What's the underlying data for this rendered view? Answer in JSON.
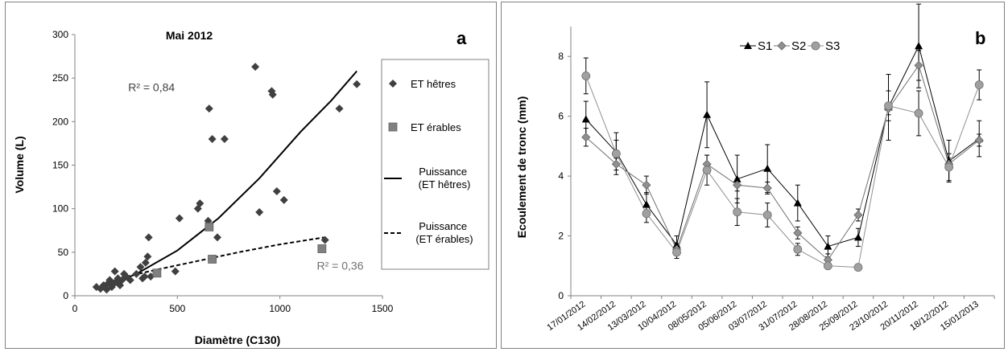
{
  "chart_data": [
    {
      "type": "scatter",
      "panel_letter": "a",
      "title": "Mai 2012",
      "xlabel": "Diamètre (C130)",
      "ylabel": "Volume (L)",
      "xlim": [
        0,
        1500
      ],
      "ylim": [
        0,
        300
      ],
      "x_ticks": [
        0,
        500,
        1000,
        1500
      ],
      "y_ticks": [
        0,
        50,
        100,
        150,
        200,
        250,
        300
      ],
      "grid": false,
      "legend_position": "right",
      "legend": [
        {
          "label": "ET hêtres"
        },
        {
          "label": "ET érables"
        },
        {
          "label": "Puissance (ET hêtres)"
        },
        {
          "label": "Puissance (ET érables)"
        }
      ],
      "annotations": [
        {
          "text": "R² = 0,84",
          "x": 260,
          "y": 235,
          "color": "#404040"
        },
        {
          "text": "R² = 0,36",
          "x": 1180,
          "y": 30,
          "color": "#707070"
        }
      ],
      "series": [
        {
          "name": "ET hêtres",
          "marker": "diamond",
          "color": "#404040",
          "points": [
            [
              105,
              10
            ],
            [
              125,
              8
            ],
            [
              140,
              12
            ],
            [
              155,
              7
            ],
            [
              165,
              15
            ],
            [
              170,
              18
            ],
            [
              180,
              10
            ],
            [
              190,
              14
            ],
            [
              195,
              28
            ],
            [
              200,
              16
            ],
            [
              210,
              20
            ],
            [
              220,
              12
            ],
            [
              230,
              18
            ],
            [
              240,
              25
            ],
            [
              250,
              22
            ],
            [
              270,
              18
            ],
            [
              300,
              25
            ],
            [
              320,
              33
            ],
            [
              330,
              20
            ],
            [
              340,
              22
            ],
            [
              345,
              38
            ],
            [
              355,
              45
            ],
            [
              360,
              67
            ],
            [
              370,
              22
            ],
            [
              490,
              28
            ],
            [
              510,
              89
            ],
            [
              600,
              100
            ],
            [
              610,
              106
            ],
            [
              650,
              86
            ],
            [
              655,
              215
            ],
            [
              670,
              180
            ],
            [
              695,
              67
            ],
            [
              730,
              180
            ],
            [
              880,
              263
            ],
            [
              900,
              96
            ],
            [
              960,
              235
            ],
            [
              965,
              231
            ],
            [
              985,
              120
            ],
            [
              1020,
              110
            ],
            [
              1220,
              64
            ],
            [
              1290,
              215
            ],
            [
              1375,
              243
            ]
          ]
        },
        {
          "name": "ET érables",
          "marker": "square",
          "color": "#808080",
          "points": [
            [
              400,
              26
            ],
            [
              655,
              79
            ],
            [
              670,
              42
            ],
            [
              1205,
              54
            ]
          ]
        },
        {
          "name": "Puissance (ET hêtres)",
          "line": "solid",
          "color": "#000000",
          "points": [
            [
              130,
              9
            ],
            [
              300,
              25
            ],
            [
              500,
              52
            ],
            [
              700,
              89
            ],
            [
              900,
              135
            ],
            [
              1100,
              188
            ],
            [
              1250,
              224
            ],
            [
              1375,
              258
            ]
          ]
        },
        {
          "name": "Puissance (ET érables)",
          "line": "dashed",
          "color": "#000000",
          "points": [
            [
              130,
              13
            ],
            [
              250,
              22
            ],
            [
              400,
              30
            ],
            [
              600,
              40
            ],
            [
              800,
              50
            ],
            [
              1000,
              59
            ],
            [
              1215,
              67
            ]
          ]
        }
      ]
    },
    {
      "type": "line",
      "panel_letter": "b",
      "xlabel": "",
      "ylabel": "Ecoulement de tronc (mm)",
      "ylim": [
        0,
        9
      ],
      "y_ticks": [
        0,
        2,
        4,
        6,
        8
      ],
      "grid": false,
      "legend_position": "top-left",
      "categories": [
        "17/01/2012",
        "14/02/2012",
        "13/03/2012",
        "10/04/2012",
        "08/05/2012",
        "05/06/2012",
        "03/07/2012",
        "31/07/2012",
        "28/08/2012",
        "25/09/2012",
        "23/10/2012",
        "20/11/2012",
        "18/12/2012",
        "15/01/2013"
      ],
      "series": [
        {
          "name": "S1",
          "marker": "triangle",
          "color": "#000000",
          "values": [
            5.9,
            4.8,
            3.05,
            1.7,
            6.05,
            3.9,
            4.25,
            3.1,
            1.65,
            1.95,
            6.3,
            8.35,
            4.5,
            5.25
          ],
          "errors": [
            0.6,
            0.4,
            0.4,
            0.3,
            1.1,
            0.8,
            0.8,
            0.6,
            0.35,
            0.3,
            1.1,
            1.4,
            0.7,
            0.6
          ]
        },
        {
          "name": "S2",
          "marker": "diamond",
          "color": "#707070",
          "values": [
            5.3,
            4.4,
            3.7,
            1.55,
            4.4,
            3.7,
            3.6,
            2.1,
            1.2,
            2.7,
            6.25,
            7.7,
            4.4,
            5.2
          ],
          "errors": [
            0.3,
            0.2,
            0.3,
            0.2,
            0.3,
            0.2,
            0.2,
            0.2,
            0.2,
            0.2,
            0.2,
            0.5,
            0.2,
            0.2
          ]
        },
        {
          "name": "S3",
          "marker": "circle",
          "color": "#909090",
          "values": [
            7.35,
            4.75,
            2.75,
            1.45,
            4.2,
            2.8,
            2.7,
            1.55,
            1.0,
            0.95,
            6.35,
            6.1,
            4.3,
            7.05
          ],
          "errors": [
            0.6,
            0.7,
            0.3,
            0.2,
            0.5,
            0.45,
            0.4,
            0.2,
            0.1,
            0.1,
            0.5,
            0.75,
            0.45,
            0.5
          ]
        }
      ]
    }
  ]
}
